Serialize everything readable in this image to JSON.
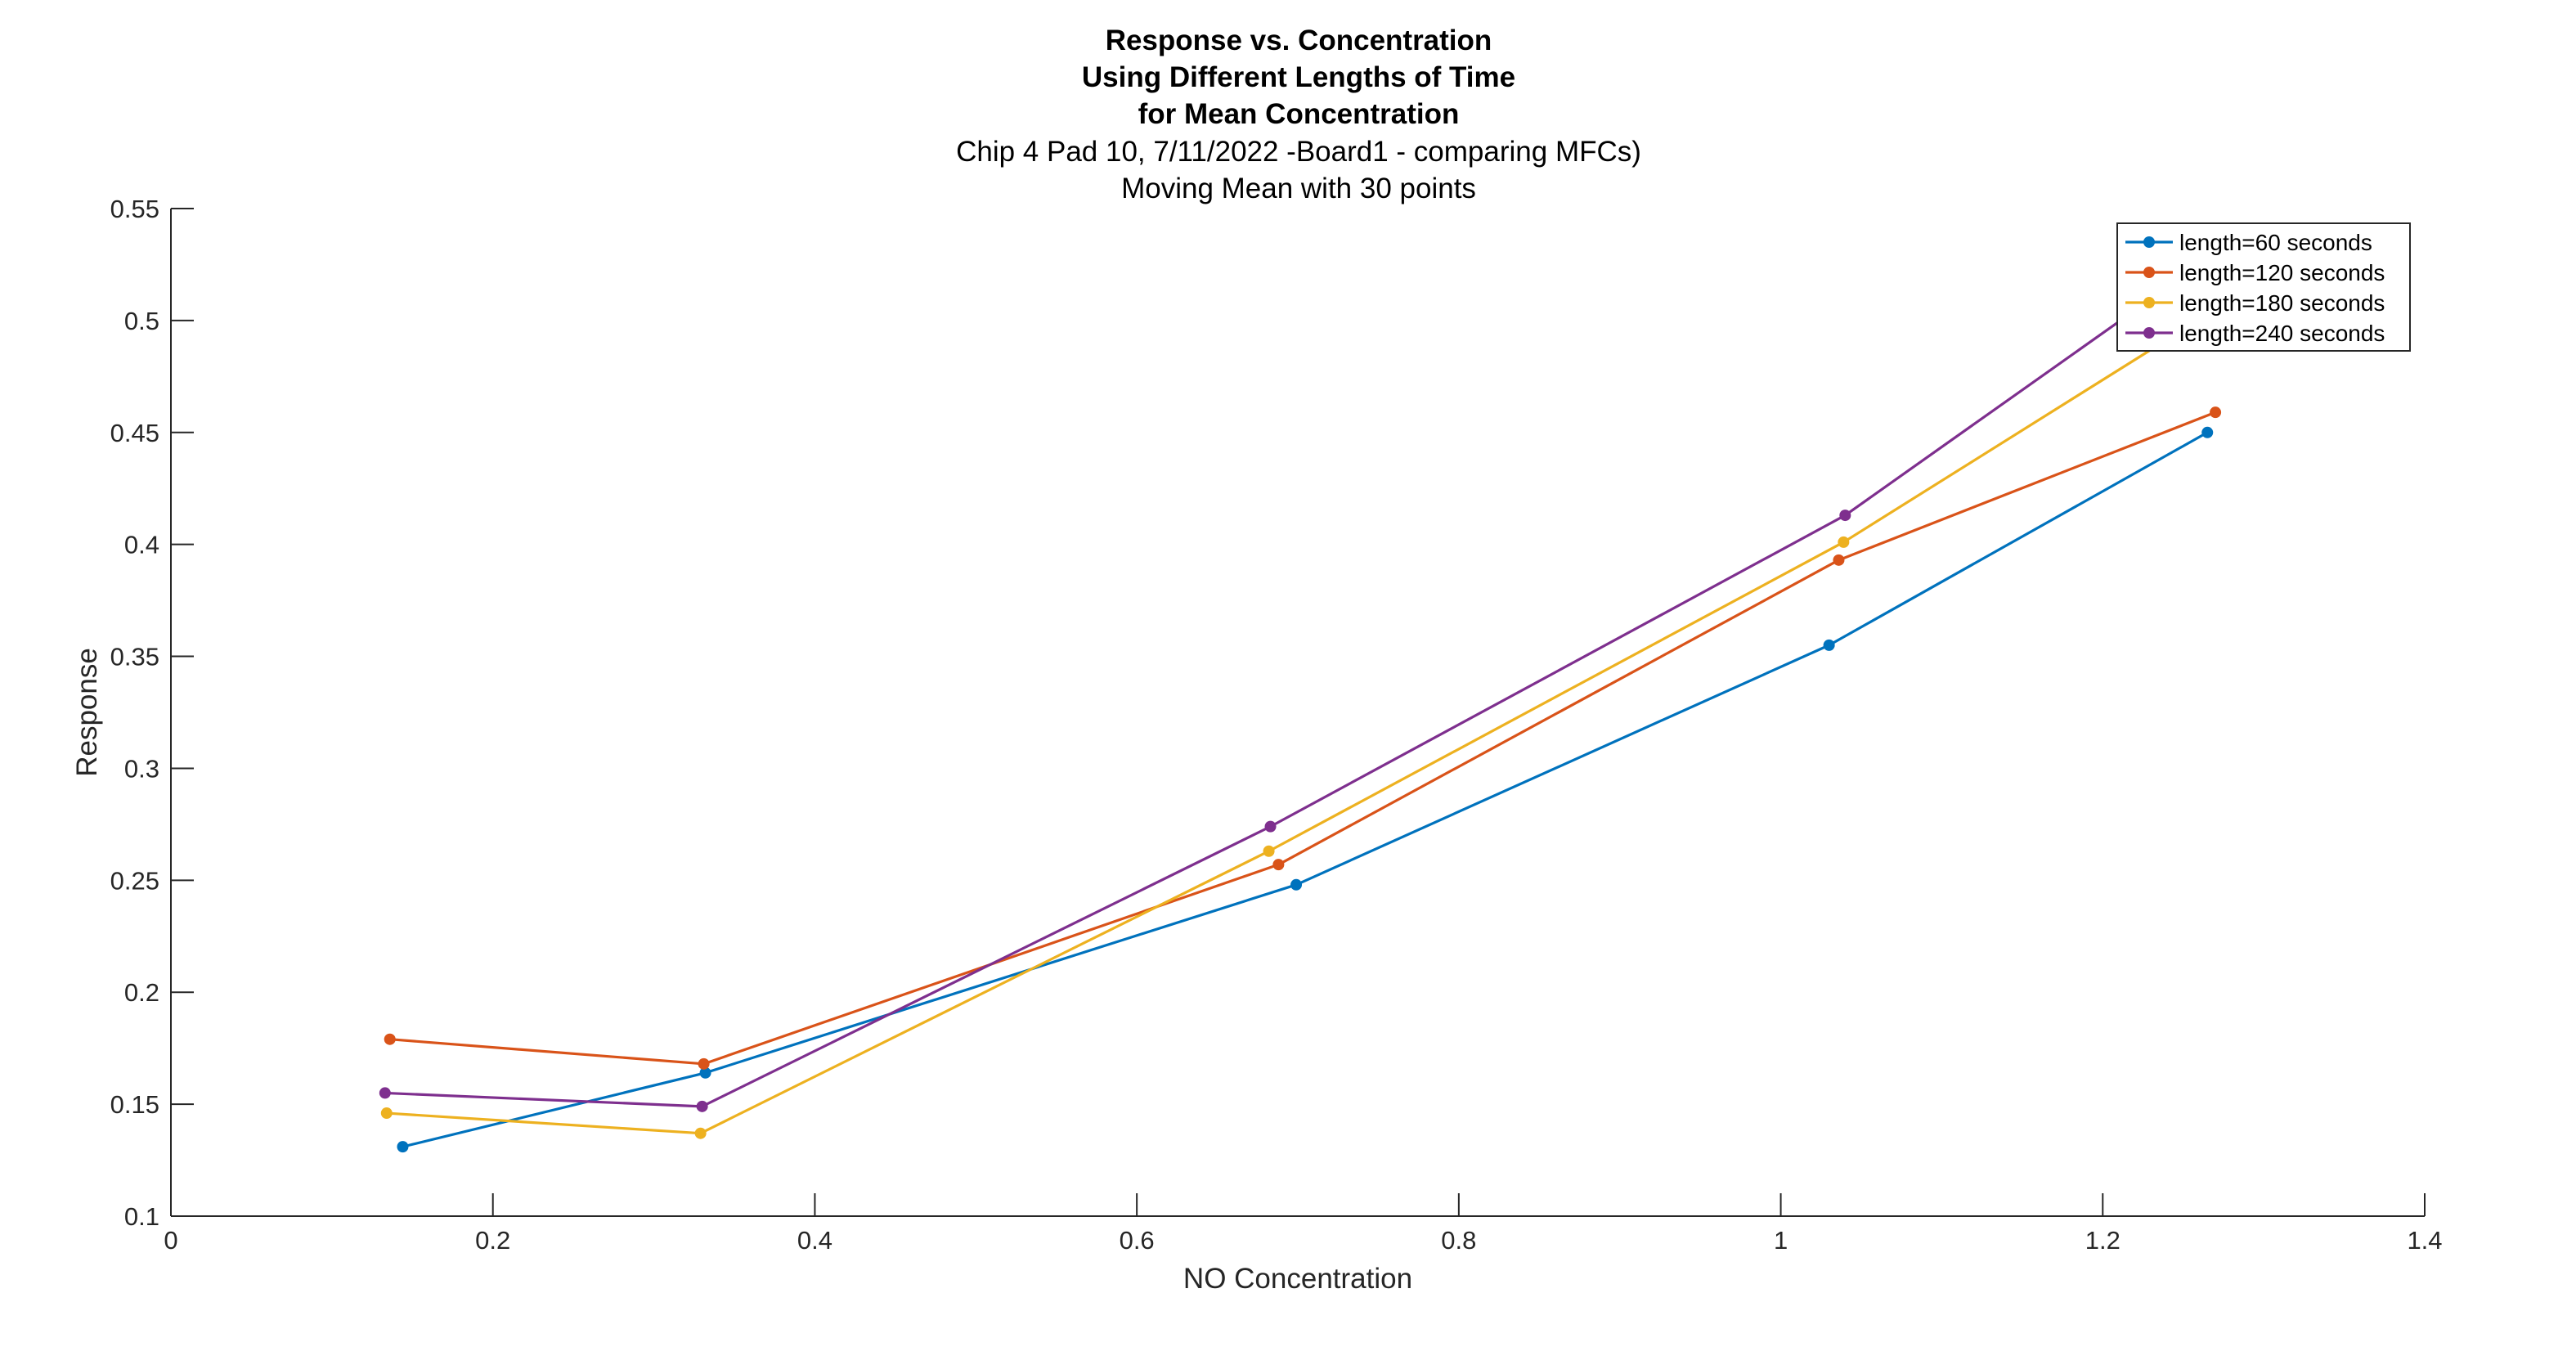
{
  "chart_data": {
    "type": "line",
    "title_lines": [
      "Response vs. Concentration",
      "Using Different Lengths of Time",
      "for Mean Concentration"
    ],
    "subtitle_lines": [
      "Chip 4 Pad 10, 7/11/2022 -Board1 - comparing MFCs)",
      "Moving Mean with 30 points"
    ],
    "xlabel": "NO Concentration",
    "ylabel": "Response",
    "xlim": [
      0,
      1.4
    ],
    "ylim": [
      0.1,
      0.55
    ],
    "xticks": [
      0,
      0.2,
      0.4,
      0.6,
      0.8,
      1,
      1.2,
      1.4
    ],
    "xtick_labels": [
      "0",
      "0.2",
      "0.4",
      "0.6",
      "0.8",
      "1",
      "1.2",
      "1.4"
    ],
    "yticks": [
      0.1,
      0.15,
      0.2,
      0.25,
      0.3,
      0.35,
      0.4,
      0.45,
      0.5,
      0.55
    ],
    "ytick_labels": [
      "0.1",
      "0.15",
      "0.2",
      "0.25",
      "0.3",
      "0.35",
      "0.4",
      "0.45",
      "0.5",
      "0.55"
    ],
    "grid": false,
    "legend_position": "top-right",
    "series": [
      {
        "name": "length=60 seconds",
        "color": "#0072BD",
        "x": [
          0.144,
          0.332,
          0.699,
          1.03,
          1.265
        ],
        "y": [
          0.131,
          0.164,
          0.248,
          0.355,
          0.45
        ]
      },
      {
        "name": "length=120 seconds",
        "color": "#D95319",
        "x": [
          0.136,
          0.331,
          0.688,
          1.036,
          1.27
        ],
        "y": [
          0.179,
          0.168,
          0.257,
          0.393,
          0.459
        ]
      },
      {
        "name": "length=180 seconds",
        "color": "#EDB120",
        "x": [
          0.134,
          0.329,
          0.682,
          1.039,
          1.27
        ],
        "y": [
          0.146,
          0.137,
          0.263,
          0.401,
          0.505
        ]
      },
      {
        "name": "length=240 seconds",
        "color": "#7E2F8E",
        "x": [
          0.133,
          0.33,
          0.683,
          1.04,
          1.27
        ],
        "y": [
          0.155,
          0.149,
          0.274,
          0.413,
          0.53
        ]
      }
    ]
  }
}
